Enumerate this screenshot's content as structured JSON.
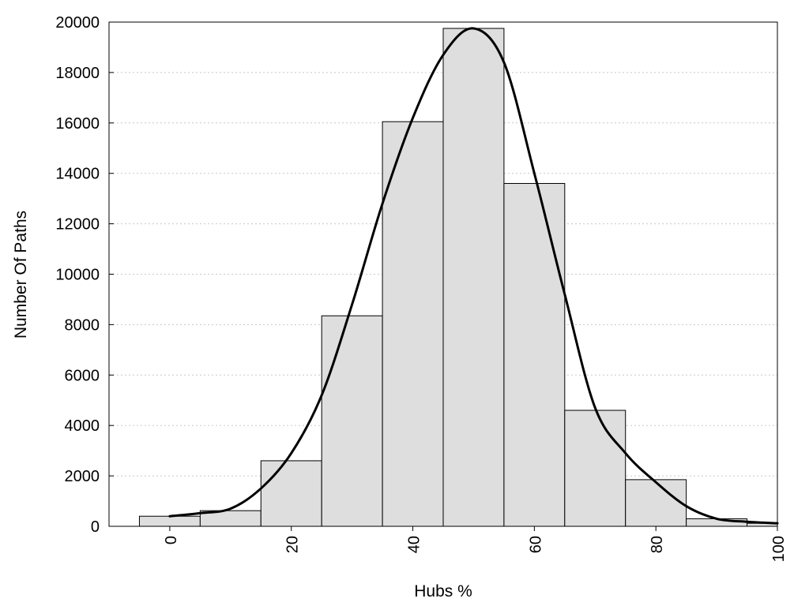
{
  "chart_data": {
    "type": "bar",
    "subtype": "histogram",
    "xlabel": "Hubs %",
    "ylabel": "Number Of Paths",
    "xlim": [
      -10,
      100
    ],
    "ylim": [
      0,
      20000
    ],
    "grid": "horizontal-dotted",
    "bins": [
      {
        "x0": -5,
        "x1": 5,
        "value": 400
      },
      {
        "x0": 5,
        "x1": 15,
        "value": 620
      },
      {
        "x0": 15,
        "x1": 25,
        "value": 2600
      },
      {
        "x0": 25,
        "x1": 35,
        "value": 8350
      },
      {
        "x0": 35,
        "x1": 45,
        "value": 16050
      },
      {
        "x0": 45,
        "x1": 55,
        "value": 19750
      },
      {
        "x0": 55,
        "x1": 65,
        "value": 13600
      },
      {
        "x0": 65,
        "x1": 75,
        "value": 4600
      },
      {
        "x0": 75,
        "x1": 85,
        "value": 1850
      },
      {
        "x0": 85,
        "x1": 95,
        "value": 300
      },
      {
        "x0": 95,
        "x1": 105,
        "value": 120
      }
    ],
    "xticks": [
      "0",
      "20",
      "40",
      "60",
      "80",
      "100"
    ],
    "yticks": [
      "0",
      "2000",
      "4000",
      "6000",
      "8000",
      "10000",
      "12000",
      "14000",
      "16000",
      "18000",
      "20000"
    ],
    "density_curve": {
      "x": [
        0,
        5,
        10,
        15,
        20,
        25,
        30,
        35,
        40,
        45,
        50,
        55,
        60,
        65,
        70,
        75,
        80,
        85,
        90,
        95,
        100
      ],
      "y": [
        400,
        520,
        700,
        1500,
        2900,
        5200,
        8800,
        12800,
        16200,
        18700,
        19750,
        18400,
        14000,
        9200,
        4700,
        2900,
        1750,
        800,
        300,
        180,
        120
      ]
    }
  }
}
